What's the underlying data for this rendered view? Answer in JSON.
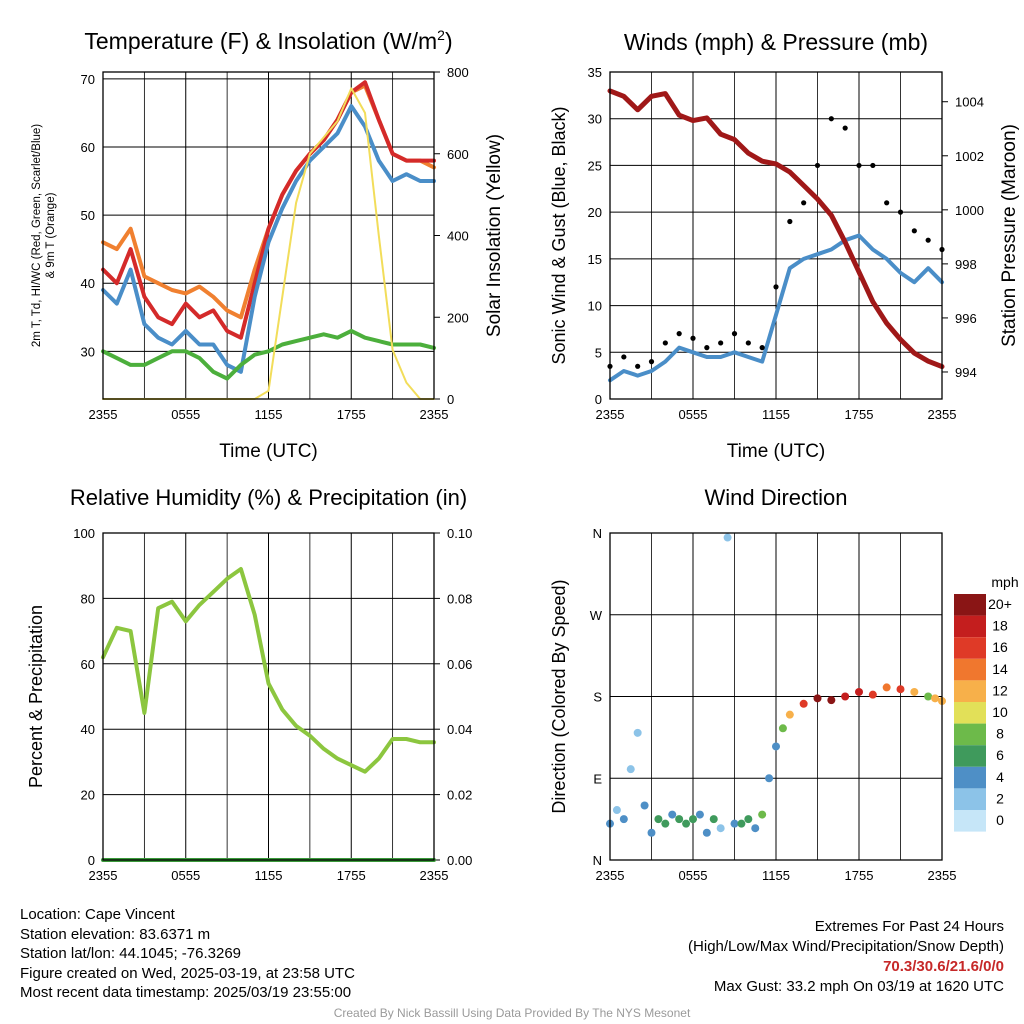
{
  "chart_data": [
    {
      "type": "line",
      "title": "Temperature (F) & Insolation (W/m²)",
      "xlabel": "Time (UTC)",
      "ylabel": "2m T, Td, HI/WC (Red, Green, Scarlet/Blue) & 9m T (Orange)",
      "ylabel_right": "Solar Insolation (Yellow)",
      "x_ticks": [
        "2355",
        "0555",
        "1155",
        "1755",
        "2355"
      ],
      "ylim": [
        23,
        71
      ],
      "y_ticks": [
        30,
        40,
        50,
        60,
        70
      ],
      "ylim_right": [
        0,
        800
      ],
      "y_ticks_right": [
        0,
        200,
        400,
        600,
        800
      ],
      "grid": true,
      "x": [
        0,
        1,
        2,
        3,
        4,
        5,
        6,
        7,
        8,
        9,
        10,
        11,
        12,
        13,
        14,
        15,
        16,
        17,
        18,
        19,
        20,
        21,
        22,
        23,
        24
      ],
      "series": [
        {
          "color": "#f08030",
          "axis": "left",
          "values": [
            46,
            45,
            48,
            41,
            40,
            39,
            38.5,
            39.5,
            38,
            36,
            35,
            42,
            48,
            53,
            56.5,
            59,
            61,
            64,
            68,
            69,
            64,
            59,
            58,
            58,
            57
          ]
        },
        {
          "color": "#d42a2a",
          "axis": "left",
          "values": [
            42,
            40,
            45,
            38,
            35,
            34,
            37,
            35,
            36,
            33,
            32,
            40,
            48,
            53,
            56.5,
            59,
            61,
            64,
            68,
            69.5,
            64,
            59,
            58,
            58,
            58
          ]
        },
        {
          "color": "#4a8ec8",
          "axis": "left",
          "values": [
            39,
            37,
            42,
            34,
            32,
            31,
            33,
            31,
            31,
            28,
            27,
            38,
            46,
            51,
            55,
            58,
            60,
            62,
            66,
            63,
            58,
            55,
            56,
            55,
            55
          ]
        },
        {
          "color": "#4caf3c",
          "axis": "left",
          "values": [
            30,
            29,
            28,
            28,
            29,
            30,
            30,
            29,
            27,
            26,
            28,
            29.5,
            30,
            31,
            31.5,
            32,
            32.5,
            32,
            33,
            32,
            31.5,
            31,
            31,
            31,
            30.5
          ]
        },
        {
          "color": "#f2dd5a",
          "axis": "right",
          "values": [
            0,
            0,
            0,
            0,
            0,
            0,
            0,
            0,
            0,
            0,
            0,
            0,
            20,
            250,
            480,
            600,
            640,
            680,
            760,
            700,
            400,
            120,
            40,
            0,
            0
          ]
        }
      ]
    },
    {
      "type": "line",
      "title": "Winds (mph) & Pressure (mb)",
      "xlabel": "Time (UTC)",
      "ylabel": "Sonic Wind & Gust (Blue, Black)",
      "ylabel_right": "Station Pressure (Maroon)",
      "x_ticks": [
        "2355",
        "0555",
        "1155",
        "1755",
        "2355"
      ],
      "ylim": [
        0,
        35
      ],
      "y_ticks": [
        0,
        5,
        10,
        15,
        20,
        25,
        30,
        35
      ],
      "ylim_right": [
        993,
        1005.1
      ],
      "y_ticks_right": [
        994,
        996,
        998,
        1000,
        1002,
        1004
      ],
      "grid": true,
      "x": [
        0,
        1,
        2,
        3,
        4,
        5,
        6,
        7,
        8,
        9,
        10,
        11,
        12,
        13,
        14,
        15,
        16,
        17,
        18,
        19,
        20,
        21,
        22,
        23,
        24
      ],
      "series": [
        {
          "color": "#4a8ec8",
          "axis": "left",
          "type": "line",
          "values": [
            2,
            3,
            2.5,
            3,
            4,
            5.5,
            5,
            4.5,
            4.5,
            5,
            4.5,
            4,
            9,
            14,
            15,
            15.5,
            16,
            17,
            17.5,
            16,
            15,
            13.5,
            12.5,
            14,
            12.5
          ]
        },
        {
          "color": "#000000",
          "axis": "left",
          "type": "scatter",
          "values": [
            3.5,
            4.5,
            3.5,
            4,
            6,
            7,
            6.5,
            5.5,
            6,
            7,
            6,
            5.5,
            12,
            19,
            21,
            25,
            30,
            29,
            25,
            25,
            21,
            20,
            18,
            17,
            16
          ]
        },
        {
          "color": "#a01818",
          "axis": "right",
          "type": "line",
          "values": [
            1004.4,
            1004.2,
            1003.7,
            1004.2,
            1004.3,
            1003.5,
            1003.3,
            1003.4,
            1002.8,
            1002.6,
            1002.1,
            1001.8,
            1001.7,
            1001.4,
            1000.9,
            1000.4,
            999.8,
            998.8,
            997.7,
            996.6,
            995.8,
            995.2,
            994.7,
            994.4,
            994.2
          ]
        }
      ]
    },
    {
      "type": "line",
      "title": "Relative Humidity (%) & Precipitation (in)",
      "ylabel": "Percent & Precipitation",
      "x_ticks": [
        "2355",
        "0555",
        "1155",
        "1755",
        "2355"
      ],
      "ylim": [
        0,
        100
      ],
      "y_ticks": [
        0,
        20,
        40,
        60,
        80,
        100
      ],
      "ylim_right": [
        0,
        0.1
      ],
      "y_ticks_right": [
        "0.00",
        "0.02",
        "0.04",
        "0.06",
        "0.08",
        "0.10"
      ],
      "grid": true,
      "x": [
        0,
        1,
        2,
        3,
        4,
        5,
        6,
        7,
        8,
        9,
        10,
        11,
        12,
        13,
        14,
        15,
        16,
        17,
        18,
        19,
        20,
        21,
        22,
        23,
        24
      ],
      "series": [
        {
          "color": "#8cc63f",
          "axis": "left",
          "values": [
            62,
            71,
            70,
            45,
            77,
            79,
            73,
            78,
            82,
            86,
            89,
            75,
            54,
            46,
            41,
            38,
            34,
            31,
            29,
            27,
            31,
            37,
            37,
            36,
            36
          ]
        },
        {
          "color": "#3a9a3a",
          "axis": "right",
          "values": [
            0,
            0,
            0,
            0,
            0,
            0,
            0,
            0,
            0,
            0,
            0,
            0,
            0,
            0,
            0,
            0,
            0,
            0,
            0,
            0,
            0,
            0,
            0,
            0,
            0
          ]
        }
      ]
    },
    {
      "type": "scatter",
      "title": "Wind Direction",
      "ylabel": "Direction (Colored By Speed)",
      "x_ticks": [
        "2355",
        "0555",
        "1155",
        "1755",
        "2355"
      ],
      "y_ticks": [
        "N",
        "E",
        "S",
        "W",
        "N"
      ],
      "ylim": [
        0,
        360
      ],
      "grid": true,
      "legend": {
        "title": "mph",
        "labels": [
          "0",
          "2",
          "4",
          "6",
          "8",
          "10",
          "12",
          "14",
          "16",
          "18",
          "20+"
        ],
        "colors": [
          "#c6e6f8",
          "#8cc3e8",
          "#4e8fc6",
          "#3f9a5c",
          "#6dba4a",
          "#e2e058",
          "#f7b04a",
          "#f0772e",
          "#df3a27",
          "#c41e1e",
          "#8a1515"
        ]
      },
      "x": [
        0,
        0.5,
        1,
        1.5,
        2,
        2.5,
        3,
        3.5,
        4,
        4.5,
        5,
        5.5,
        6,
        6.5,
        7,
        7.5,
        8,
        8.5,
        9,
        9.5,
        10,
        10.5,
        11,
        11.5,
        12,
        12.5,
        13,
        14,
        15,
        16,
        17,
        18,
        19,
        20,
        21,
        22,
        23,
        23.5,
        24
      ],
      "values": [
        40,
        55,
        45,
        100,
        140,
        60,
        30,
        45,
        40,
        50,
        45,
        40,
        45,
        50,
        30,
        45,
        35,
        355,
        40,
        40,
        45,
        35,
        50,
        90,
        125,
        145,
        160,
        172,
        178,
        176,
        180,
        185,
        182,
        190,
        188,
        185,
        180,
        178,
        175
      ],
      "speeds": [
        3,
        2,
        3,
        2,
        1,
        3,
        4,
        5,
        6,
        4,
        5,
        6,
        5,
        4,
        3,
        5,
        2,
        2,
        4,
        6,
        6,
        3,
        7,
        3,
        4,
        8,
        12,
        16,
        19,
        20,
        18,
        17,
        16,
        14,
        16,
        12,
        8,
        11,
        12
      ]
    }
  ],
  "footer": {
    "location": "Location: Cape Vincent",
    "elevation": "Station elevation: 83.6371 m",
    "latlon": "Station lat/lon: 44.1045; -76.3269",
    "created": "Figure created on Wed, 2025-03-19, at 23:58 UTC",
    "recent": "Most recent data timestamp: 2025/03/19 23:55:00",
    "extremes_title": "Extremes For Past 24 Hours",
    "extremes_desc": "(High/Low/Max Wind/Precipitation/Snow Depth)",
    "extremes_values": "70.3/30.6/21.6/0/0",
    "max_gust": "Max Gust: 33.2 mph On 03/19 at 1620 UTC",
    "credit": "Created By Nick Bassill Using Data Provided By The NYS Mesonet"
  }
}
